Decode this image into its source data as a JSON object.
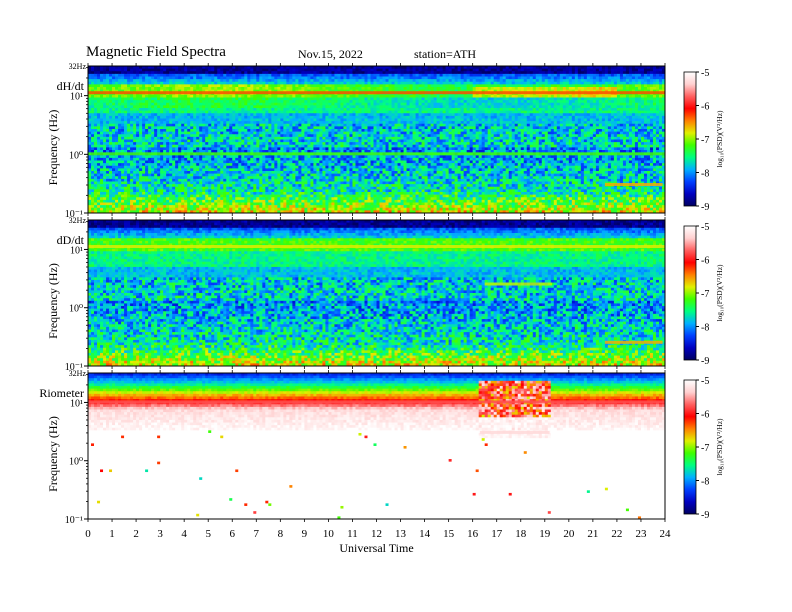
{
  "header": {
    "title": "Magnetic  Field  Spectra",
    "date": "Nov.15, 2022",
    "station": "station=ATH"
  },
  "colors": {
    "colormap": [
      "#000060",
      "#0000c0",
      "#0040ff",
      "#00b0ff",
      "#00ff80",
      "#40ff00",
      "#e0f000",
      "#ff8000",
      "#ff0000",
      "#ff6060",
      "#ffd0d0",
      "#ffffff"
    ]
  },
  "chart_data": [
    {
      "type": "heatmap",
      "panel_label": "dH/dt",
      "ylabel": "Frequency  (Hz)",
      "y_top_label": "32Hz",
      "y_ticks": [
        "10¹",
        "10⁰",
        "10⁻¹"
      ],
      "y_scale": "log",
      "x_range": [
        0,
        24
      ],
      "colorbar": {
        "label": "log₁₀(PSD)(V²/Hz)",
        "ticks": [
          "-5",
          "-6",
          "-7",
          "-8",
          "-9"
        ],
        "range": [
          -9,
          -5
        ]
      },
      "features": [
        {
          "freq_hz": 11,
          "level": -6.3,
          "t_start": 0,
          "t_end": 24
        },
        {
          "freq_hz": 1.0,
          "level": -7.2,
          "t_start": 0,
          "t_end": 24
        },
        {
          "freq_hz": 0.3,
          "level": -6.6,
          "t_start": 21.5,
          "t_end": 23.9
        }
      ]
    },
    {
      "type": "heatmap",
      "panel_label": "dD/dt",
      "ylabel": "Frequency  (Hz)",
      "y_top_label": "32Hz",
      "y_ticks": [
        "10¹",
        "10⁰",
        "10⁻¹"
      ],
      "y_scale": "log",
      "x_range": [
        0,
        24
      ],
      "colorbar": {
        "label": "log₁₀(PSD)(V²/Hz)",
        "ticks": [
          "-5",
          "-6",
          "-7",
          "-8",
          "-9"
        ],
        "range": [
          -9,
          -5
        ]
      },
      "features": [
        {
          "freq_hz": 11,
          "level": -6.8,
          "t_start": 0,
          "t_end": 24
        },
        {
          "freq_hz": 2.5,
          "level": -6.9,
          "t_start": 16.5,
          "t_end": 19.3
        },
        {
          "freq_hz": 0.25,
          "level": -6.6,
          "t_start": 21.5,
          "t_end": 23.9
        }
      ]
    },
    {
      "type": "heatmap",
      "panel_label": "Riometer",
      "ylabel": "Frequency  (Hz)",
      "y_top_label": "32Hz",
      "y_ticks": [
        "10¹",
        "10⁰",
        "10⁻¹"
      ],
      "y_scale": "log",
      "x_range": [
        0,
        24
      ],
      "xlabel": "Universal  Time",
      "x_ticks": [
        "0",
        "1",
        "2",
        "3",
        "4",
        "5",
        "6",
        "7",
        "8",
        "9",
        "10",
        "11",
        "12",
        "13",
        "14",
        "15",
        "16",
        "17",
        "18",
        "19",
        "20",
        "21",
        "22",
        "23",
        "24"
      ],
      "colorbar": {
        "label": "log₁₀(PSD)(V²/Hz)",
        "ticks": [
          "-5",
          "-6",
          "-7",
          "-8",
          "-9"
        ],
        "range": [
          -9,
          -5
        ]
      },
      "features": [
        {
          "freq_hz": 10,
          "level": -5.8,
          "t_start": 0,
          "t_end": 24
        },
        {
          "freq_hz": 3,
          "level": -5.3,
          "t_start": 16.3,
          "t_end": 19.2
        }
      ]
    }
  ]
}
